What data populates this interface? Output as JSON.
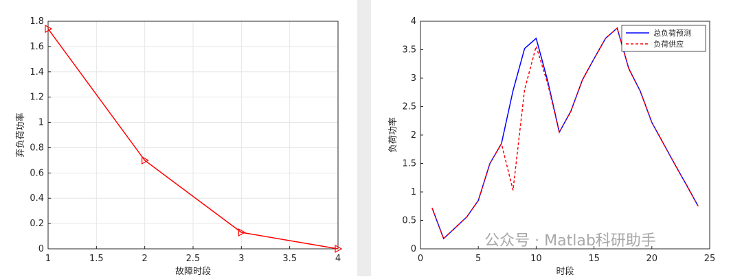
{
  "chart_data": [
    {
      "type": "line",
      "xlabel": "故障时段",
      "ylabel": "弃负荷功率",
      "x": [
        1,
        2,
        3,
        4
      ],
      "values": [
        1.74,
        0.7,
        0.13,
        0
      ],
      "color": "#ff0000",
      "marker": "triangle-right",
      "xlim": [
        1,
        4
      ],
      "xticks": [
        1,
        1.5,
        2,
        2.5,
        3,
        3.5,
        4
      ],
      "ylim": [
        0,
        1.8
      ],
      "yticks": [
        0,
        0.2,
        0.4,
        0.6,
        0.8,
        1,
        1.2,
        1.4,
        1.6,
        1.8
      ],
      "grid": true
    },
    {
      "type": "line",
      "xlabel": "时段",
      "ylabel": "负荷功率",
      "x": [
        1,
        2,
        3,
        4,
        5,
        6,
        7,
        8,
        9,
        10,
        11,
        12,
        13,
        14,
        15,
        16,
        17,
        18,
        19,
        20,
        21,
        22,
        23,
        24
      ],
      "series": [
        {
          "name": "总负荷预测",
          "color": "#0000ff",
          "linestyle": "solid",
          "values": [
            0.72,
            0.18,
            0.37,
            0.56,
            0.85,
            1.5,
            1.85,
            2.78,
            3.52,
            3.7,
            2.95,
            2.05,
            2.42,
            2.97,
            3.34,
            3.7,
            3.88,
            3.17,
            2.77,
            2.22,
            1.85,
            1.48,
            1.12,
            0.75
          ]
        },
        {
          "name": "负荷供应",
          "color": "#ff0000",
          "linestyle": "dashed",
          "values": [
            0.72,
            0.18,
            0.37,
            0.56,
            0.85,
            1.5,
            1.85,
            1.03,
            2.8,
            3.56,
            2.9,
            2.05,
            2.42,
            2.97,
            3.34,
            3.7,
            3.88,
            3.17,
            2.77,
            2.22,
            1.85,
            1.48,
            1.12,
            0.75
          ]
        }
      ],
      "xlim": [
        0,
        25
      ],
      "xticks": [
        0,
        5,
        10,
        15,
        20,
        25
      ],
      "ylim": [
        0,
        4
      ],
      "yticks": [
        0,
        0.5,
        1,
        1.5,
        2,
        2.5,
        3,
        3.5,
        4
      ],
      "grid": false,
      "legend": "upper right"
    }
  ],
  "watermark": "公众号 · Matlab科研助手"
}
